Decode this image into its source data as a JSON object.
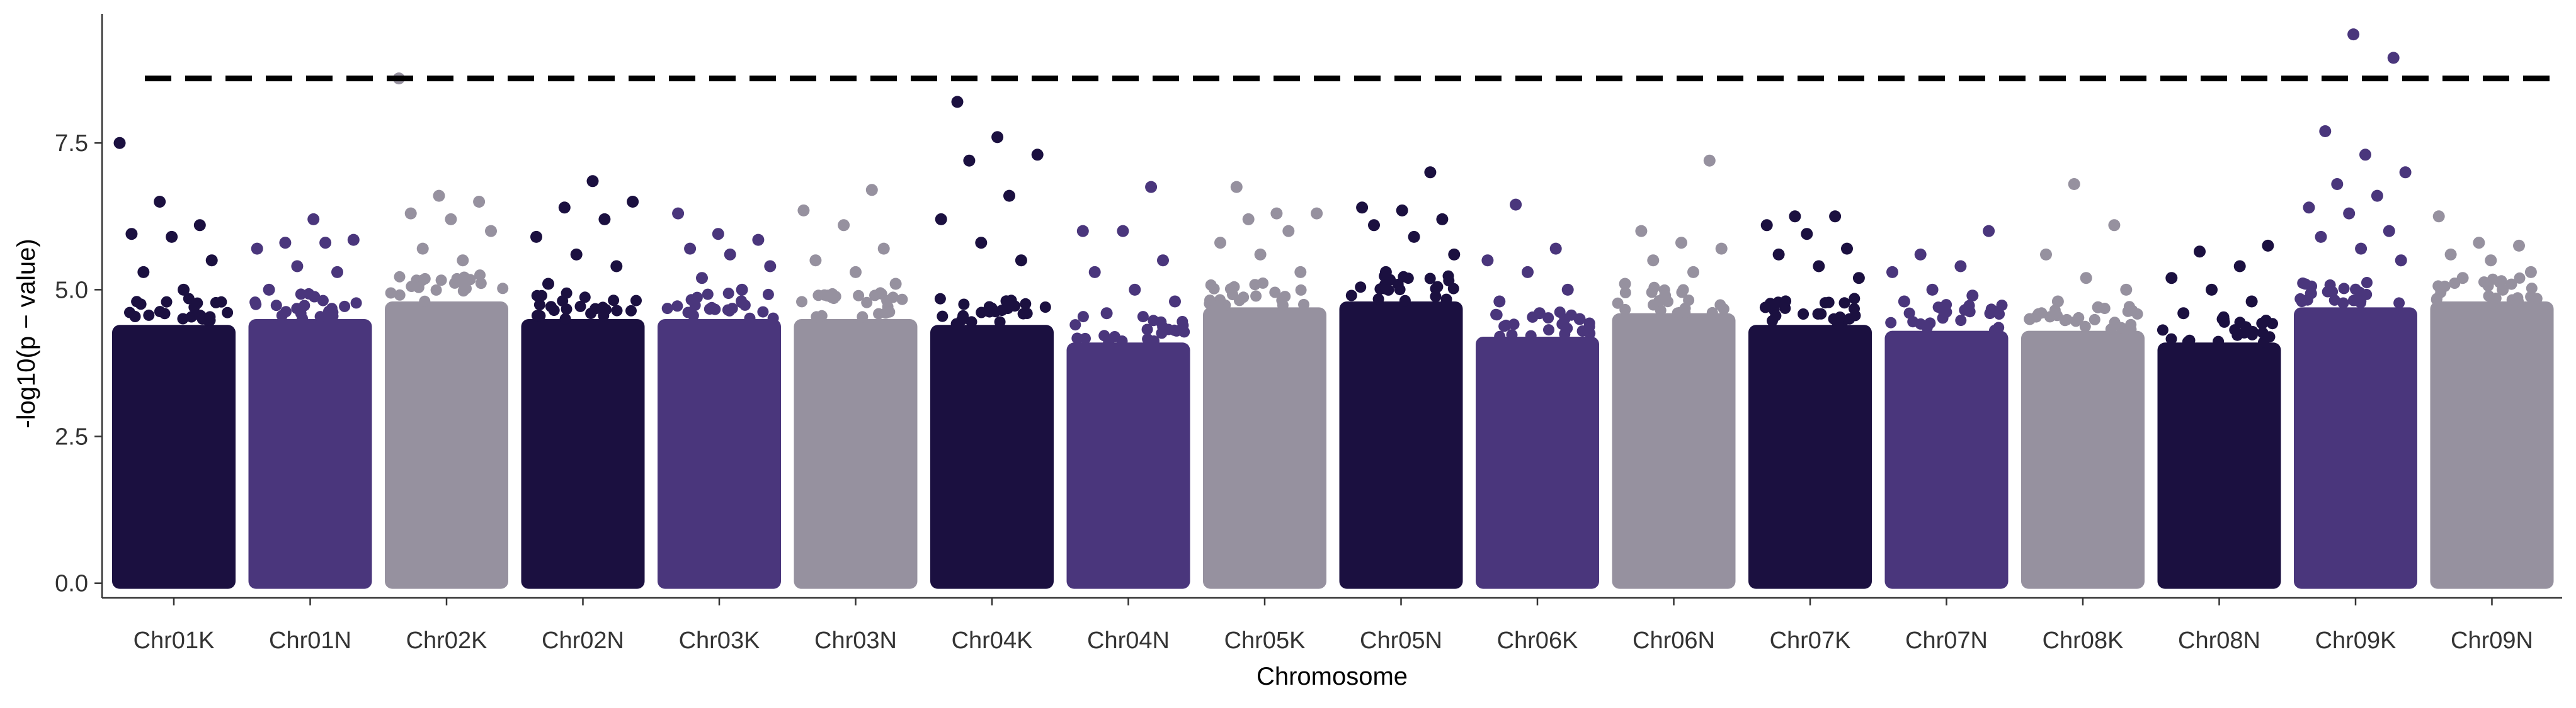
{
  "chart_data": {
    "type": "scatter",
    "subtype": "manhattan",
    "title": "",
    "xlabel": "Chromosome",
    "ylabel": "-log10(p − value)",
    "ylim": [
      -0.25,
      9.7
    ],
    "y_ticks": [
      0.0,
      2.5,
      5.0,
      7.5
    ],
    "y_tick_labels": [
      "0.0",
      "2.5",
      "5.0",
      "7.5"
    ],
    "threshold": 8.6,
    "threshold_style": "dashed",
    "categories": [
      "Chr01K",
      "Chr01N",
      "Chr02K",
      "Chr02N",
      "Chr03K",
      "Chr03N",
      "Chr04K",
      "Chr04N",
      "Chr05K",
      "Chr05N",
      "Chr06K",
      "Chr06N",
      "Chr07K",
      "Chr07N",
      "Chr08K",
      "Chr08N",
      "Chr09K",
      "Chr09N"
    ],
    "palette": [
      "#1b1040",
      "#4a367c",
      "#96919f"
    ],
    "series": [
      {
        "name": "Chr01K",
        "band_top": 4.4,
        "top_points": [
          7.5,
          6.5,
          6.1,
          5.95,
          5.9,
          5.5,
          5.3,
          5.0
        ]
      },
      {
        "name": "Chr01N",
        "band_top": 4.5,
        "top_points": [
          6.2,
          5.85,
          5.8,
          5.8,
          5.7,
          5.4,
          5.3,
          5.0
        ]
      },
      {
        "name": "Chr02K",
        "band_top": 4.8,
        "top_points": [
          8.6,
          6.6,
          6.5,
          6.3,
          6.2,
          6.0,
          5.7,
          5.5
        ]
      },
      {
        "name": "Chr02N",
        "band_top": 4.5,
        "top_points": [
          6.85,
          6.5,
          6.4,
          6.2,
          5.9,
          5.6,
          5.4,
          5.1
        ]
      },
      {
        "name": "Chr03K",
        "band_top": 4.5,
        "top_points": [
          6.3,
          5.95,
          5.85,
          5.7,
          5.6,
          5.4,
          5.2,
          5.0
        ]
      },
      {
        "name": "Chr03N",
        "band_top": 4.5,
        "top_points": [
          6.7,
          6.35,
          6.1,
          5.7,
          5.5,
          5.3,
          5.1,
          4.9
        ]
      },
      {
        "name": "Chr04K",
        "band_top": 4.4,
        "top_points": [
          8.2,
          7.6,
          7.3,
          7.2,
          6.6,
          6.2,
          5.8,
          5.5
        ]
      },
      {
        "name": "Chr04N",
        "band_top": 4.1,
        "top_points": [
          6.75,
          6.0,
          6.0,
          5.5,
          5.3,
          5.0,
          4.8,
          4.6
        ]
      },
      {
        "name": "Chr05K",
        "band_top": 4.7,
        "top_points": [
          6.75,
          6.3,
          6.3,
          6.2,
          6.0,
          5.8,
          5.6,
          5.3
        ]
      },
      {
        "name": "Chr05N",
        "band_top": 4.8,
        "top_points": [
          7.0,
          6.4,
          6.35,
          6.2,
          6.1,
          5.9,
          5.6,
          5.3
        ]
      },
      {
        "name": "Chr06K",
        "band_top": 4.2,
        "top_points": [
          6.45,
          5.7,
          5.5,
          5.3,
          5.0,
          4.8,
          4.6,
          4.5
        ]
      },
      {
        "name": "Chr06N",
        "band_top": 4.6,
        "top_points": [
          7.2,
          6.0,
          5.8,
          5.7,
          5.5,
          5.3,
          5.1,
          4.9
        ]
      },
      {
        "name": "Chr07K",
        "band_top": 4.4,
        "top_points": [
          6.25,
          6.25,
          6.1,
          5.95,
          5.7,
          5.6,
          5.4,
          5.2
        ]
      },
      {
        "name": "Chr07N",
        "band_top": 4.3,
        "top_points": [
          6.0,
          5.6,
          5.4,
          5.3,
          5.0,
          4.9,
          4.8,
          4.6
        ]
      },
      {
        "name": "Chr08K",
        "band_top": 4.3,
        "top_points": [
          6.8,
          6.1,
          5.6,
          5.2,
          5.0,
          4.8,
          4.7,
          4.5
        ]
      },
      {
        "name": "Chr08N",
        "band_top": 4.1,
        "top_points": [
          5.75,
          5.65,
          5.4,
          5.2,
          5.0,
          4.8,
          4.6,
          4.5
        ]
      },
      {
        "name": "Chr09K",
        "band_top": 4.7,
        "top_points": [
          9.35,
          8.95,
          7.7,
          7.3,
          7.0,
          6.8,
          6.6,
          6.4,
          6.3,
          6.0,
          5.9,
          5.7,
          5.5
        ]
      },
      {
        "name": "Chr09N",
        "band_top": 4.8,
        "top_points": [
          6.25,
          5.8,
          5.75,
          5.6,
          5.5,
          5.3,
          5.2,
          5.0
        ]
      }
    ]
  }
}
